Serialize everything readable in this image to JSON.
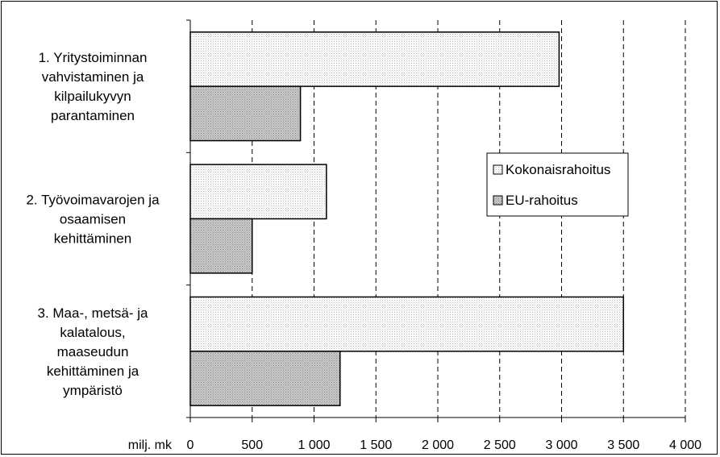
{
  "chart_data": {
    "type": "bar",
    "orientation": "horizontal",
    "categories": [
      [
        "1. Yritystoiminnan",
        "vahvistaminen ja",
        "kilpailukyvyn",
        "parantaminen"
      ],
      [
        "2. Työvoimavarojen ja",
        "osaamisen",
        "kehittäminen"
      ],
      [
        "3. Maa-, metsä- ja",
        "kalatalous,",
        "maaseudun",
        "kehittäminen ja",
        "ympäristö"
      ]
    ],
    "series": [
      {
        "name": "Kokonaisrahoitus",
        "values": [
          2980,
          1100,
          3500
        ],
        "fill": "dots-light"
      },
      {
        "name": "EU-rahoitus",
        "values": [
          890,
          500,
          1210
        ],
        "fill": "dots-dark"
      }
    ],
    "x_ticks": [
      "0",
      "500",
      "1 000",
      "1 500",
      "2 000",
      "2 500",
      "3 000",
      "3 500",
      "4 000"
    ],
    "xlim": [
      0,
      4000
    ],
    "xlabel": "milj. mk",
    "grid": "vertical-dashed",
    "legend_position": "right-middle"
  }
}
